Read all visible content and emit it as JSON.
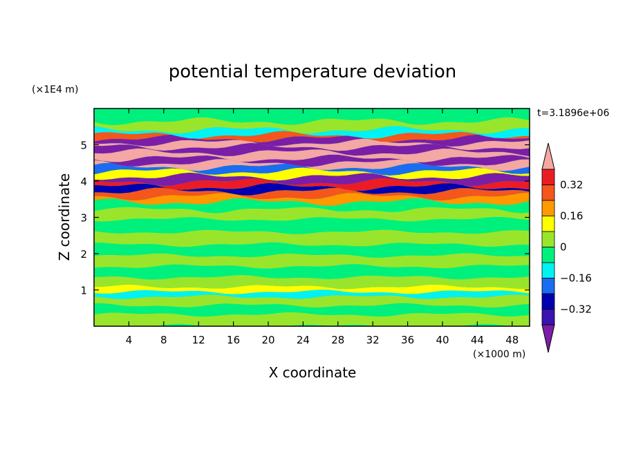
{
  "chart_data": {
    "type": "heatmap",
    "title": "potential temperature deviation",
    "xlabel": "X coordinate",
    "ylabel": "Z coordinate",
    "x_unit": "(×1000 m)",
    "y_unit": "(×1E4 m)",
    "timestamp": "t=3.1896e+06",
    "xlim": [
      0,
      50
    ],
    "ylim": [
      0,
      6
    ],
    "x_ticks": [
      "4",
      "8",
      "12",
      "16",
      "20",
      "24",
      "28",
      "32",
      "36",
      "40",
      "44",
      "48"
    ],
    "y_ticks": [
      "1",
      "2",
      "3",
      "4",
      "5"
    ],
    "colorbar": {
      "labels": [
        "0.32",
        "0.16",
        "0",
        "−0.16",
        "−0.32"
      ],
      "label_values": [
        0.32,
        0.16,
        0,
        -0.16,
        -0.32
      ],
      "levels": [
        {
          "min": 0.4,
          "max": null,
          "color": "#f4a7a3"
        },
        {
          "min": 0.32,
          "max": 0.4,
          "color": "#ec1c24"
        },
        {
          "min": 0.24,
          "max": 0.32,
          "color": "#f4561b"
        },
        {
          "min": 0.16,
          "max": 0.24,
          "color": "#ff9900"
        },
        {
          "min": 0.08,
          "max": 0.16,
          "color": "#ffff00"
        },
        {
          "min": 0.0,
          "max": 0.08,
          "color": "#99e52b"
        },
        {
          "min": -0.08,
          "max": 0.0,
          "color": "#00f07d"
        },
        {
          "min": -0.16,
          "max": -0.08,
          "color": "#00f2f2"
        },
        {
          "min": -0.24,
          "max": -0.16,
          "color": "#1a6cf0"
        },
        {
          "min": -0.32,
          "max": -0.24,
          "color": "#0000b0"
        },
        {
          "min": -0.4,
          "max": -0.32,
          "color": "#3a13b0"
        },
        {
          "min": null,
          "max": -0.4,
          "color": "#7a1ea8"
        }
      ]
    },
    "bands": [
      {
        "z": 0.2,
        "value": 0.02
      },
      {
        "z": 0.45,
        "value": -0.03
      },
      {
        "z": 0.7,
        "value": 0.03
      },
      {
        "z": 0.92,
        "value": -0.12
      },
      {
        "z": 0.97,
        "value": 0.1
      },
      {
        "z": 1.2,
        "value": 0.02
      },
      {
        "z": 1.5,
        "value": -0.02
      },
      {
        "z": 1.8,
        "value": 0.03
      },
      {
        "z": 2.1,
        "value": -0.03
      },
      {
        "z": 2.4,
        "value": 0.02
      },
      {
        "z": 2.8,
        "value": -0.02
      },
      {
        "z": 3.1,
        "value": 0.03
      },
      {
        "z": 3.35,
        "value": -0.05
      },
      {
        "z": 3.5,
        "value": 0.2
      },
      {
        "z": 3.65,
        "value": 0.3
      },
      {
        "z": 3.78,
        "value": -0.3
      },
      {
        "z": 3.9,
        "value": 0.35
      },
      {
        "z": 4.05,
        "value": -0.45
      },
      {
        "z": 4.2,
        "value": 0.12
      },
      {
        "z": 4.33,
        "value": -0.2
      },
      {
        "z": 4.45,
        "value": 0.45
      },
      {
        "z": 4.55,
        "value": -0.45
      },
      {
        "z": 4.7,
        "value": 0.45
      },
      {
        "z": 4.88,
        "value": -0.45
      },
      {
        "z": 5.0,
        "value": 0.45
      },
      {
        "z": 5.12,
        "value": -0.42
      },
      {
        "z": 5.22,
        "value": 0.3
      },
      {
        "z": 5.32,
        "value": -0.1
      },
      {
        "z": 5.5,
        "value": 0.03
      },
      {
        "z": 5.8,
        "value": -0.02
      }
    ],
    "grid": false
  }
}
